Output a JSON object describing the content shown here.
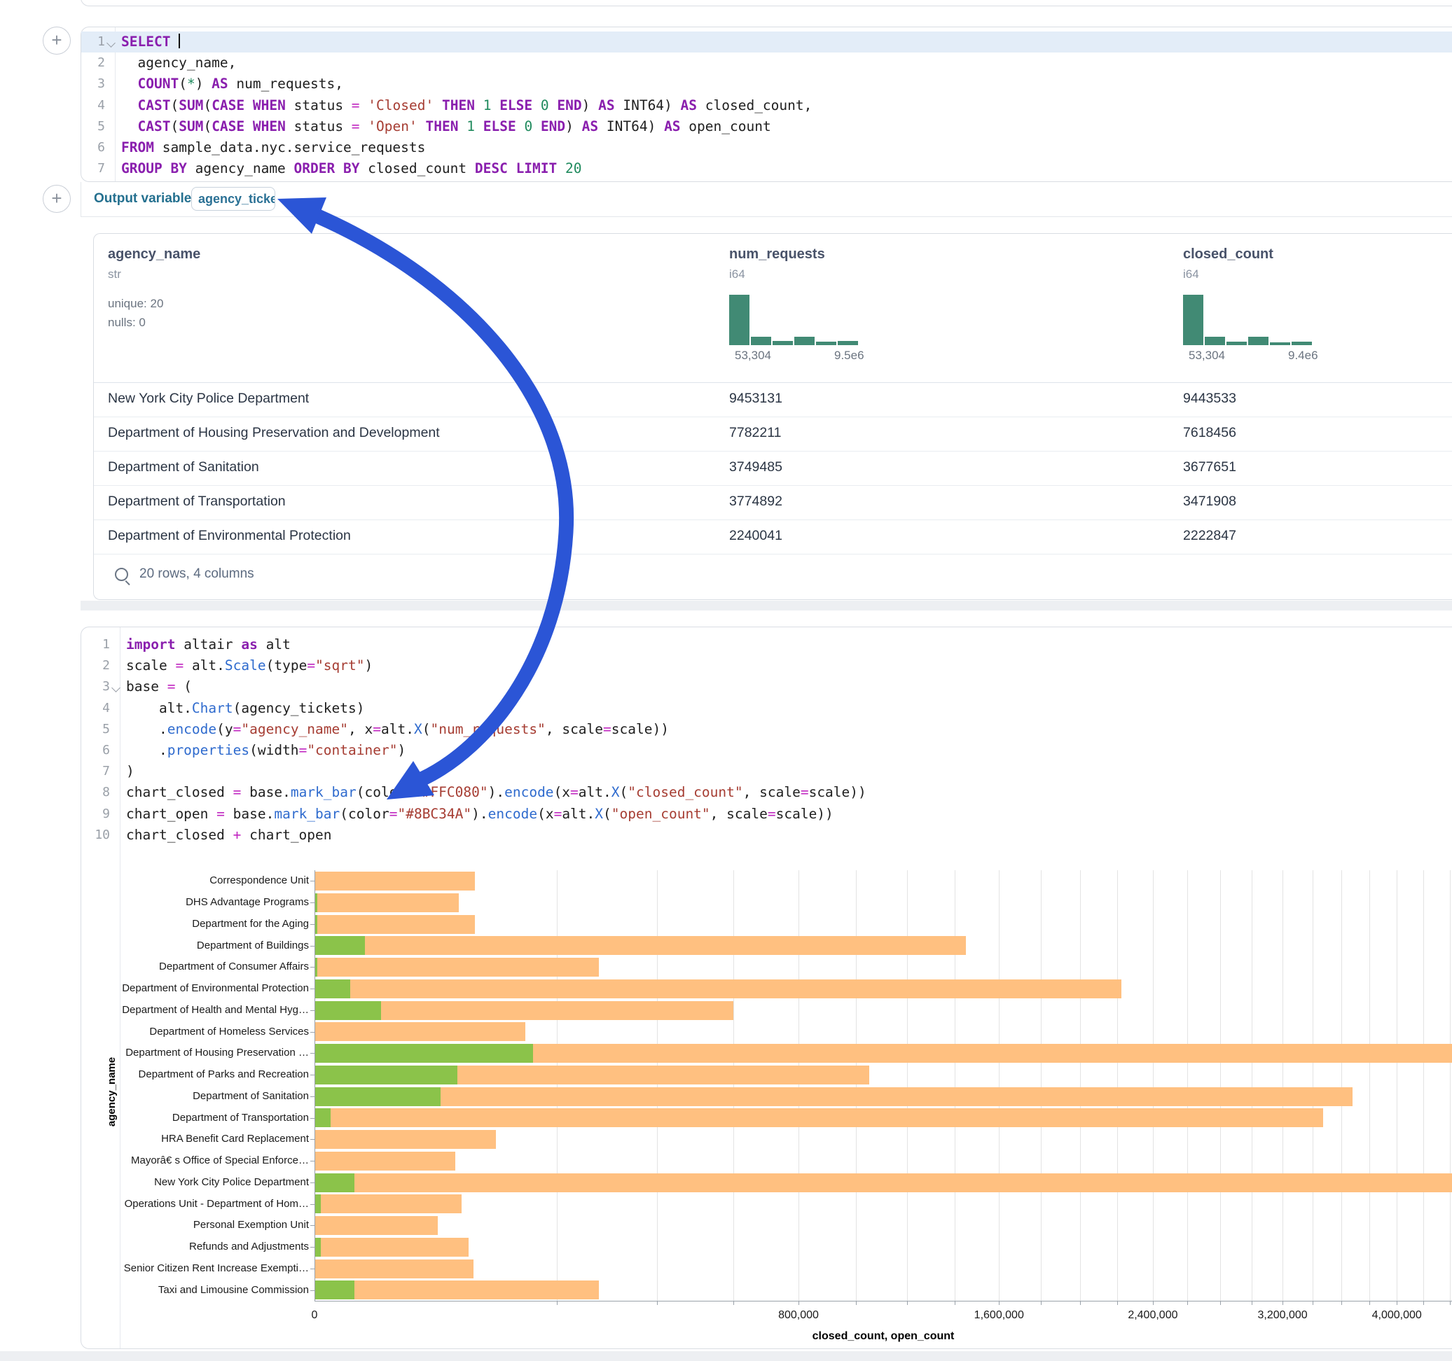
{
  "colors": {
    "closed_bar": "#FFC080",
    "open_bar": "#8BC34A",
    "histogram": "#418a74",
    "annotation_arrow": "#2b55d6",
    "output_label": "#24708f"
  },
  "plus_buttons": {
    "label": "+"
  },
  "sql_cell": {
    "lines": [
      {
        "n": "1",
        "fold": true,
        "active": true,
        "tokens": [
          [
            "kw",
            "SELECT"
          ],
          [
            "t",
            " "
          ],
          [
            "cursor",
            ""
          ]
        ]
      },
      {
        "n": "2",
        "tokens": [
          [
            "t",
            "  agency_name,"
          ]
        ]
      },
      {
        "n": "3",
        "tokens": [
          [
            "t",
            "  "
          ],
          [
            "kw",
            "COUNT"
          ],
          [
            "t",
            "("
          ],
          [
            "num",
            "*"
          ],
          [
            "t",
            ") "
          ],
          [
            "kw",
            "AS"
          ],
          [
            "t",
            " num_requests,"
          ]
        ]
      },
      {
        "n": "4",
        "tokens": [
          [
            "t",
            "  "
          ],
          [
            "kw",
            "CAST"
          ],
          [
            "t",
            "("
          ],
          [
            "kw",
            "SUM"
          ],
          [
            "t",
            "("
          ],
          [
            "kw",
            "CASE"
          ],
          [
            "t",
            " "
          ],
          [
            "kw",
            "WHEN"
          ],
          [
            "t",
            " status "
          ],
          [
            "op",
            "="
          ],
          [
            "t",
            " "
          ],
          [
            "str",
            "'Closed'"
          ],
          [
            "t",
            " "
          ],
          [
            "kw",
            "THEN"
          ],
          [
            "t",
            " "
          ],
          [
            "num",
            "1"
          ],
          [
            "t",
            " "
          ],
          [
            "kw",
            "ELSE"
          ],
          [
            "t",
            " "
          ],
          [
            "num",
            "0"
          ],
          [
            "t",
            " "
          ],
          [
            "kw",
            "END"
          ],
          [
            "t",
            ") "
          ],
          [
            "kw",
            "AS"
          ],
          [
            "t",
            " INT64) "
          ],
          [
            "kw",
            "AS"
          ],
          [
            "t",
            " closed_count,"
          ]
        ]
      },
      {
        "n": "5",
        "tokens": [
          [
            "t",
            "  "
          ],
          [
            "kw",
            "CAST"
          ],
          [
            "t",
            "("
          ],
          [
            "kw",
            "SUM"
          ],
          [
            "t",
            "("
          ],
          [
            "kw",
            "CASE"
          ],
          [
            "t",
            " "
          ],
          [
            "kw",
            "WHEN"
          ],
          [
            "t",
            " status "
          ],
          [
            "op",
            "="
          ],
          [
            "t",
            " "
          ],
          [
            "str",
            "'Open'"
          ],
          [
            "t",
            " "
          ],
          [
            "kw",
            "THEN"
          ],
          [
            "t",
            " "
          ],
          [
            "num",
            "1"
          ],
          [
            "t",
            " "
          ],
          [
            "kw",
            "ELSE"
          ],
          [
            "t",
            " "
          ],
          [
            "num",
            "0"
          ],
          [
            "t",
            " "
          ],
          [
            "kw",
            "END"
          ],
          [
            "t",
            ") "
          ],
          [
            "kw",
            "AS"
          ],
          [
            "t",
            " INT64) "
          ],
          [
            "kw",
            "AS"
          ],
          [
            "t",
            " open_count"
          ]
        ]
      },
      {
        "n": "6",
        "tokens": [
          [
            "kw",
            "FROM"
          ],
          [
            "t",
            " sample_data.nyc.service_requests"
          ]
        ]
      },
      {
        "n": "7",
        "tokens": [
          [
            "kw",
            "GROUP BY"
          ],
          [
            "t",
            " agency_name "
          ],
          [
            "kw",
            "ORDER BY"
          ],
          [
            "t",
            " closed_count "
          ],
          [
            "kw",
            "DESC"
          ],
          [
            "t",
            " "
          ],
          [
            "kw",
            "LIMIT"
          ],
          [
            "t",
            " "
          ],
          [
            "num",
            "20"
          ]
        ]
      }
    ]
  },
  "output_variable": {
    "label": "Output variable:",
    "value": "agency_tickets"
  },
  "table": {
    "columns": [
      {
        "name": "agency_name",
        "type": "str",
        "stats": [
          "unique: 20",
          "nulls: 0"
        ]
      },
      {
        "name": "num_requests",
        "type": "i64",
        "histogram": [
          1,
          0.17,
          0.08,
          0.17,
          0.07,
          0.08
        ],
        "hist_min": "53,304",
        "hist_max": "9.5e6"
      },
      {
        "name": "closed_count",
        "type": "i64",
        "histogram": [
          1,
          0.16,
          0.07,
          0.16,
          0.06,
          0.07
        ],
        "hist_min": "53,304",
        "hist_max": "9.4e6"
      }
    ],
    "rows": [
      [
        "New York City Police Department",
        "9453131",
        "9443533"
      ],
      [
        "Department of Housing Preservation and Development",
        "7782211",
        "7618456"
      ],
      [
        "Department of Sanitation",
        "3749485",
        "3677651"
      ],
      [
        "Department of Transportation",
        "3774892",
        "3471908"
      ],
      [
        "Department of Environmental Protection",
        "2240041",
        "2222847"
      ]
    ],
    "footer": "20 rows, 4 columns"
  },
  "python_cell": {
    "lines": [
      {
        "n": "1",
        "tokens": [
          [
            "kw",
            "import"
          ],
          [
            "t",
            " altair "
          ],
          [
            "kw",
            "as"
          ],
          [
            "t",
            " alt"
          ]
        ]
      },
      {
        "n": "2",
        "tokens": [
          [
            "t",
            "scale "
          ],
          [
            "op",
            "="
          ],
          [
            "t",
            " alt."
          ],
          [
            "fn",
            "Scale"
          ],
          [
            "t",
            "(type"
          ],
          [
            "op",
            "="
          ],
          [
            "str",
            "\"sqrt\""
          ],
          [
            "t",
            ")"
          ]
        ]
      },
      {
        "n": "3",
        "fold": true,
        "tokens": [
          [
            "t",
            "base "
          ],
          [
            "op",
            "="
          ],
          [
            "t",
            " ("
          ]
        ]
      },
      {
        "n": "4",
        "tokens": [
          [
            "t",
            "    alt."
          ],
          [
            "fn",
            "Chart"
          ],
          [
            "t",
            "(agency_tickets)"
          ]
        ]
      },
      {
        "n": "5",
        "tokens": [
          [
            "t",
            "    ."
          ],
          [
            "fn",
            "encode"
          ],
          [
            "t",
            "(y"
          ],
          [
            "op",
            "="
          ],
          [
            "str",
            "\"agency_name\""
          ],
          [
            "t",
            ", x"
          ],
          [
            "op",
            "="
          ],
          [
            "t",
            "alt."
          ],
          [
            "fn",
            "X"
          ],
          [
            "t",
            "("
          ],
          [
            "str",
            "\"num_requests\""
          ],
          [
            "t",
            ", scale"
          ],
          [
            "op",
            "="
          ],
          [
            "t",
            "scale))"
          ]
        ]
      },
      {
        "n": "6",
        "tokens": [
          [
            "t",
            "    ."
          ],
          [
            "fn",
            "properties"
          ],
          [
            "t",
            "(width"
          ],
          [
            "op",
            "="
          ],
          [
            "str",
            "\"container\""
          ],
          [
            "t",
            ")"
          ]
        ]
      },
      {
        "n": "7",
        "tokens": [
          [
            "t",
            ")"
          ]
        ]
      },
      {
        "n": "8",
        "tokens": [
          [
            "t",
            "chart_closed "
          ],
          [
            "op",
            "="
          ],
          [
            "t",
            " base."
          ],
          [
            "fn",
            "mark_bar"
          ],
          [
            "t",
            "(color"
          ],
          [
            "op",
            "="
          ],
          [
            "str",
            "\"#FFC080\""
          ],
          [
            "t",
            ")."
          ],
          [
            "fn",
            "encode"
          ],
          [
            "t",
            "(x"
          ],
          [
            "op",
            "="
          ],
          [
            "t",
            "alt."
          ],
          [
            "fn",
            "X"
          ],
          [
            "t",
            "("
          ],
          [
            "str",
            "\"closed_count\""
          ],
          [
            "t",
            ", scale"
          ],
          [
            "op",
            "="
          ],
          [
            "t",
            "scale))"
          ]
        ]
      },
      {
        "n": "9",
        "tokens": [
          [
            "t",
            "chart_open "
          ],
          [
            "op",
            "="
          ],
          [
            "t",
            " base."
          ],
          [
            "fn",
            "mark_bar"
          ],
          [
            "t",
            "(color"
          ],
          [
            "op",
            "="
          ],
          [
            "str",
            "\"#8BC34A\""
          ],
          [
            "t",
            ")."
          ],
          [
            "fn",
            "encode"
          ],
          [
            "t",
            "(x"
          ],
          [
            "op",
            "="
          ],
          [
            "t",
            "alt."
          ],
          [
            "fn",
            "X"
          ],
          [
            "t",
            "("
          ],
          [
            "str",
            "\"open_count\""
          ],
          [
            "t",
            ", scale"
          ],
          [
            "op",
            "="
          ],
          [
            "t",
            "scale))"
          ]
        ]
      },
      {
        "n": "10",
        "tokens": [
          [
            "t",
            "chart_closed "
          ],
          [
            "op",
            "+"
          ],
          [
            "t",
            " chart_open"
          ]
        ]
      }
    ]
  },
  "chart_data": {
    "type": "bar",
    "orientation": "horizontal",
    "x_scale": "sqrt",
    "title": "",
    "xlabel": "closed_count, open_count",
    "ylabel": "agency_name",
    "legend_position": "none",
    "grid": true,
    "x_tick_step": 200000,
    "x_max_visible": 4400000,
    "x_ticks_labeled": [
      0,
      800000,
      1600000,
      2400000,
      3200000,
      4000000
    ],
    "categories": [
      "Correspondence Unit",
      "DHS Advantage Programs",
      "Department for the Aging",
      "Department of Buildings",
      "Department of Consumer Affairs",
      "Department of Environmental Protection",
      "Department of Health and Mental Hyg…",
      "Department of Homeless Services",
      "Department of Housing Preservation …",
      "Department of Parks and Recreation",
      "Department of Sanitation",
      "Department of Transportation",
      "HRA Benefit Card Replacement",
      "Mayorâ€ s Office of Special Enforce…",
      "New York City Police Department",
      "Operations Unit - Department of Hom…",
      "Personal Exemption Unit",
      "Refunds and Adjustments",
      "Senior Citizen Rent Increase Exempti…",
      "Taxi and Limousine Commission"
    ],
    "series": [
      {
        "name": "closed_count",
        "color": "#FFC080",
        "values": [
          88000,
          71000,
          88000,
          1450000,
          276000,
          2222847,
          600000,
          152000,
          7618456,
          1050000,
          3677651,
          3471908,
          112000,
          68000,
          9443533,
          74000,
          52000,
          81000,
          86000,
          276000
        ]
      },
      {
        "name": "open_count",
        "color": "#8BC34A",
        "values": [
          0,
          25,
          25,
          8700,
          25,
          4400,
          15000,
          0,
          163000,
          70000,
          54000,
          900,
          0,
          0,
          5500,
          140,
          0,
          140,
          0,
          5500
        ]
      }
    ]
  }
}
